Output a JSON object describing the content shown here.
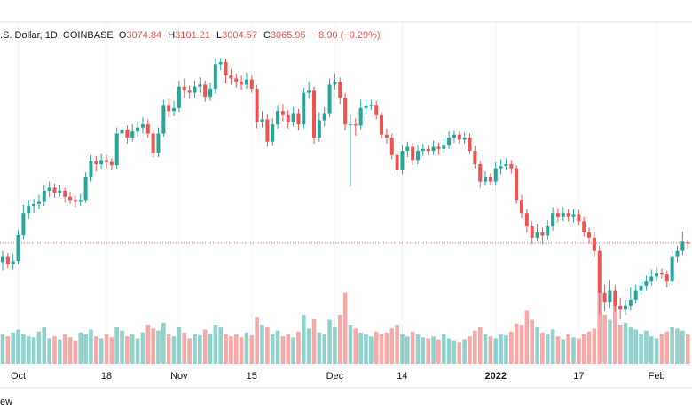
{
  "chart_data": {
    "type": "candlestick",
    "header": {
      "symbol": ".S. Dollar, 1D, COINBASE",
      "ohlc": [
        {
          "label": "O",
          "value": 3074.84
        },
        {
          "label": "H",
          "value": 3101.21
        },
        {
          "label": "L",
          "value": 3004.57
        },
        {
          "label": "C",
          "value": 3065.95
        }
      ],
      "change": "−8.90 (−0.29%)"
    },
    "footer": "ew",
    "up_color": "#26a69a",
    "down_color": "#ef5350",
    "open": [
      2880,
      2930,
      2860,
      2890,
      3145,
      3360,
      3430,
      3450,
      3470,
      3580,
      3610,
      3560,
      3580,
      3520,
      3490,
      3470,
      3490,
      3710,
      3870,
      3840,
      3880,
      3860,
      3830,
      4140,
      4180,
      4100,
      4160,
      4200,
      4230,
      4140,
      3950,
      4140,
      4420,
      4360,
      4390,
      4600,
      4560,
      4540,
      4600,
      4620,
      4500,
      4580,
      4820,
      4840,
      4710,
      4680,
      4650,
      4620,
      4670,
      4580,
      4250,
      4280,
      4060,
      4230,
      4360,
      4320,
      4250,
      4340,
      4230,
      4540,
      4560,
      4100,
      4270,
      4340,
      4620,
      4650,
      4490,
      4230,
      4230,
      4220,
      4390,
      4410,
      4420,
      4320,
      4130,
      4100,
      3930,
      3780,
      3970,
      4010,
      3880,
      3970,
      3990,
      3970,
      4010,
      3990,
      4030,
      4100,
      4130,
      4080,
      4100,
      3970,
      3840,
      3670,
      3710,
      3670,
      3800,
      3820,
      3840,
      3800,
      3490,
      3360,
      3230,
      3120,
      3170,
      3140,
      3230,
      3360,
      3320,
      3360,
      3320,
      3350,
      3280,
      3170,
      3120,
      2990,
      2580,
      2490,
      2600,
      2450,
      2420,
      2450,
      2510,
      2600,
      2650,
      2690,
      2740,
      2770,
      2760,
      2690,
      2930,
      2990,
      3074.84
    ],
    "high": [
      2990,
      2970,
      2960,
      3195,
      3440,
      3490,
      3500,
      3540,
      3640,
      3670,
      3650,
      3640,
      3610,
      3570,
      3530,
      3550,
      3760,
      3930,
      3920,
      3940,
      3930,
      3900,
      4200,
      4250,
      4220,
      4230,
      4260,
      4300,
      4280,
      4180,
      4200,
      4470,
      4480,
      4460,
      4660,
      4680,
      4610,
      4660,
      4690,
      4660,
      4640,
      4880,
      4880,
      4870,
      4770,
      4730,
      4710,
      4740,
      4710,
      4620,
      4360,
      4330,
      4290,
      4420,
      4430,
      4370,
      4400,
      4380,
      4590,
      4650,
      4600,
      4350,
      4400,
      4680,
      4730,
      4690,
      4540,
      4330,
      4290,
      4470,
      4470,
      4470,
      4460,
      4350,
      4190,
      4140,
      3980,
      4030,
      4060,
      4050,
      4030,
      4040,
      4030,
      4070,
      4050,
      4090,
      4160,
      4170,
      4160,
      4150,
      4140,
      4020,
      3870,
      3770,
      3750,
      3860,
      3890,
      3900,
      3880,
      3830,
      3540,
      3400,
      3280,
      3250,
      3220,
      3290,
      3420,
      3410,
      3420,
      3400,
      3400,
      3390,
      3320,
      3220,
      3180,
      3040,
      2660,
      2700,
      2660,
      2530,
      2510,
      2630,
      2660,
      2720,
      2750,
      2810,
      2830,
      2820,
      2800,
      2990,
      3040,
      3180,
      3101.21
    ],
    "low": [
      2800,
      2820,
      2810,
      2860,
      3105,
      3300,
      3360,
      3400,
      3430,
      3520,
      3510,
      3520,
      3460,
      3450,
      3420,
      3430,
      3460,
      3670,
      3770,
      3790,
      3800,
      3780,
      3790,
      4090,
      4040,
      4060,
      4110,
      4140,
      4100,
      3910,
      3910,
      4110,
      4300,
      4310,
      4350,
      4490,
      4480,
      4490,
      4540,
      4450,
      4460,
      4530,
      4760,
      4630,
      4620,
      4590,
      4570,
      4580,
      4540,
      4190,
      4200,
      4010,
      4020,
      4190,
      4260,
      4190,
      4210,
      4170,
      4190,
      4480,
      4040,
      4060,
      4210,
      4300,
      4570,
      4430,
      4170,
      3623,
      4120,
      4180,
      4330,
      4370,
      4280,
      4090,
      4040,
      3890,
      3720,
      3740,
      3910,
      3830,
      3840,
      3920,
      3930,
      3930,
      3930,
      3950,
      3990,
      4050,
      4040,
      4040,
      3940,
      3800,
      3610,
      3630,
      3630,
      3630,
      3740,
      3780,
      3750,
      3450,
      3310,
      3170,
      3060,
      3080,
      3060,
      3100,
      3190,
      3270,
      3280,
      3280,
      3270,
      3240,
      3130,
      3060,
      2930,
      2360,
      2400,
      2430,
      2390,
      2320,
      2360,
      2410,
      2470,
      2560,
      2600,
      2650,
      2690,
      2720,
      2630,
      2650,
      2880,
      2950,
      3004.57
    ],
    "close": [
      2930,
      2860,
      2890,
      3145,
      3360,
      3430,
      3450,
      3470,
      3580,
      3610,
      3560,
      3580,
      3520,
      3490,
      3470,
      3490,
      3710,
      3870,
      3840,
      3880,
      3860,
      3830,
      4140,
      4180,
      4100,
      4160,
      4200,
      4230,
      4140,
      3950,
      4140,
      4420,
      4360,
      4390,
      4600,
      4560,
      4540,
      4600,
      4620,
      4500,
      4580,
      4820,
      4840,
      4710,
      4680,
      4650,
      4620,
      4670,
      4580,
      4250,
      4280,
      4060,
      4230,
      4360,
      4320,
      4250,
      4340,
      4230,
      4540,
      4560,
      4100,
      4270,
      4340,
      4620,
      4650,
      4490,
      4230,
      4230,
      4220,
      4390,
      4410,
      4420,
      4320,
      4130,
      4100,
      3930,
      3780,
      3970,
      4010,
      3880,
      3970,
      3990,
      3970,
      4010,
      3990,
      4030,
      4100,
      4130,
      4080,
      4100,
      3970,
      3840,
      3670,
      3710,
      3670,
      3800,
      3820,
      3840,
      3800,
      3490,
      3360,
      3230,
      3120,
      3170,
      3140,
      3230,
      3360,
      3320,
      3360,
      3320,
      3350,
      3280,
      3170,
      3120,
      2990,
      2580,
      2490,
      2600,
      2450,
      2420,
      2450,
      2510,
      2600,
      2650,
      2690,
      2740,
      2770,
      2760,
      2690,
      2930,
      2990,
      3080,
      3065.95
    ],
    "volume": [
      30,
      28,
      32,
      35,
      30,
      28,
      27,
      33,
      38,
      26,
      28,
      25,
      30,
      27,
      24,
      32,
      30,
      35,
      28,
      26,
      30,
      27,
      38,
      34,
      28,
      30,
      26,
      32,
      40,
      36,
      34,
      42,
      30,
      28,
      38,
      32,
      26,
      30,
      29,
      35,
      31,
      40,
      38,
      30,
      28,
      30,
      27,
      32,
      29,
      48,
      40,
      38,
      30,
      34,
      28,
      30,
      27,
      33,
      50,
      36,
      46,
      32,
      30,
      45,
      38,
      50,
      73,
      40,
      36,
      32,
      30,
      28,
      33,
      30,
      32,
      36,
      40,
      30,
      28,
      33,
      30,
      27,
      26,
      28,
      25,
      30,
      26,
      24,
      22,
      25,
      28,
      34,
      38,
      30,
      28,
      26,
      30,
      29,
      33,
      41,
      40,
      55,
      45,
      38,
      32,
      30,
      35,
      28,
      25,
      30,
      27,
      26,
      30,
      33,
      36,
      73,
      50,
      45,
      60,
      40,
      42,
      38,
      35,
      30,
      34,
      28,
      26,
      30,
      33,
      38,
      36,
      34,
      30
    ],
    "ylim": [
      1883,
      5232
    ],
    "vlim": [
      0,
      100
    ],
    "xticks": [
      {
        "value": 3,
        "label": "Oct"
      },
      {
        "value": 20,
        "label": "18"
      },
      {
        "value": 34,
        "label": "Nov"
      },
      {
        "value": 48,
        "label": "15"
      },
      {
        "value": 64,
        "label": "Dec"
      },
      {
        "value": 77,
        "label": "14"
      },
      {
        "value": 95,
        "label": "2022"
      },
      {
        "value": 111,
        "label": "17"
      },
      {
        "value": 126,
        "label": "Feb"
      }
    ],
    "grid": true
  }
}
